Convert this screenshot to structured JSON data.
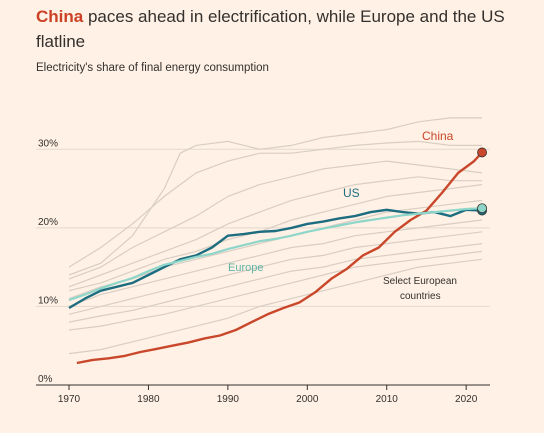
{
  "title": {
    "highlight": "China",
    "rest": " paces ahead in electrification, while Europe and the US flatline"
  },
  "subtitle": "Electricity's share of final energy consumption",
  "colors": {
    "china": "#c9472a",
    "us": "#1d6d80",
    "europe": "#8ed6c9",
    "countries": "#d9cec4",
    "grid": "#e3d9cf",
    "axis": "#33302e"
  },
  "chart_data": {
    "type": "line",
    "xlim": [
      1970,
      2023
    ],
    "ylim": [
      0,
      35
    ],
    "x_ticks": [
      1970,
      1980,
      1990,
      2000,
      2010,
      2020
    ],
    "x_tick_labels": [
      "1970",
      "1980",
      "1990",
      "2000",
      "2010",
      "2020"
    ],
    "y_ticks": [
      0,
      10,
      20,
      30
    ],
    "y_tick_labels": [
      "0%",
      "10%",
      "20%",
      "30%"
    ],
    "grid": true,
    "annotations": {
      "china": "China",
      "us": "US",
      "europe": "Europe",
      "countries_line1": "Select European",
      "countries_line2": "countries"
    },
    "series": [
      {
        "name": "China",
        "x": [
          1971,
          1973,
          1975,
          1977,
          1979,
          1981,
          1983,
          1985,
          1987,
          1989,
          1991,
          1993,
          1995,
          1997,
          1999,
          2001,
          2003,
          2005,
          2007,
          2009,
          2011,
          2013,
          2015,
          2017,
          2019,
          2021,
          2022
        ],
        "values": [
          2.8,
          3.2,
          3.4,
          3.7,
          4.2,
          4.6,
          5.0,
          5.4,
          5.9,
          6.3,
          7.0,
          8.0,
          9.0,
          9.8,
          10.5,
          11.8,
          13.5,
          14.8,
          16.5,
          17.5,
          19.5,
          21.0,
          22.2,
          24.5,
          27.0,
          28.5,
          29.6
        ]
      },
      {
        "name": "US",
        "x": [
          1970,
          1972,
          1974,
          1976,
          1978,
          1980,
          1982,
          1984,
          1986,
          1988,
          1990,
          1992,
          1994,
          1996,
          1998,
          2000,
          2002,
          2004,
          2006,
          2008,
          2010,
          2012,
          2014,
          2016,
          2018,
          2020,
          2022
        ],
        "values": [
          9.8,
          11.0,
          12.0,
          12.5,
          13.0,
          14.0,
          15.0,
          16.0,
          16.5,
          17.5,
          19.0,
          19.2,
          19.5,
          19.6,
          20.0,
          20.5,
          20.8,
          21.2,
          21.5,
          22.0,
          22.3,
          22.0,
          21.8,
          22.0,
          21.5,
          22.3,
          22.2
        ]
      },
      {
        "name": "Europe",
        "x": [
          1970,
          1972,
          1974,
          1976,
          1978,
          1980,
          1982,
          1984,
          1986,
          1988,
          1990,
          1992,
          1994,
          1996,
          1998,
          2000,
          2002,
          2004,
          2006,
          2008,
          2010,
          2012,
          2014,
          2016,
          2018,
          2020,
          2022
        ],
        "values": [
          10.8,
          11.5,
          12.3,
          13.0,
          13.6,
          14.5,
          15.3,
          15.8,
          16.3,
          16.7,
          17.3,
          17.8,
          18.3,
          18.6,
          19.0,
          19.5,
          19.9,
          20.3,
          20.7,
          21.0,
          21.3,
          21.6,
          21.8,
          22.0,
          22.2,
          22.4,
          22.5
        ]
      }
    ],
    "background_series": [
      {
        "x": [
          1970,
          1974,
          1978,
          1982,
          1984,
          1986,
          1990,
          1994,
          1998,
          2002,
          2006,
          2010,
          2014,
          2018,
          2022
        ],
        "values": [
          14.0,
          15.5,
          19.0,
          25.0,
          29.5,
          30.5,
          31.0,
          30.0,
          30.5,
          31.5,
          32.0,
          32.5,
          33.5,
          34.0,
          34.0
        ]
      },
      {
        "x": [
          1970,
          1974,
          1978,
          1982,
          1986,
          1990,
          1994,
          1998,
          2002,
          2006,
          2010,
          2014,
          2018,
          2022
        ],
        "values": [
          15.0,
          17.5,
          20.5,
          24.0,
          27.0,
          28.5,
          29.5,
          29.5,
          30.0,
          30.5,
          30.8,
          31.0,
          30.5,
          30.5
        ]
      },
      {
        "x": [
          1970,
          1974,
          1978,
          1982,
          1986,
          1990,
          1994,
          1998,
          2002,
          2006,
          2010,
          2014,
          2018,
          2022
        ],
        "values": [
          13.5,
          15.0,
          17.5,
          19.5,
          21.5,
          24.0,
          25.5,
          26.5,
          27.5,
          28.0,
          28.5,
          28.0,
          27.5,
          27.0
        ]
      },
      {
        "x": [
          1970,
          1974,
          1978,
          1982,
          1986,
          1990,
          1994,
          1998,
          2002,
          2006,
          2010,
          2014,
          2018,
          2022
        ],
        "values": [
          12.5,
          14.0,
          15.5,
          17.0,
          18.5,
          20.5,
          22.0,
          23.5,
          24.5,
          25.5,
          26.0,
          26.5,
          26.0,
          26.0
        ]
      },
      {
        "x": [
          1970,
          1974,
          1978,
          1982,
          1986,
          1990,
          1994,
          1998,
          2002,
          2006,
          2010,
          2014,
          2018,
          2022
        ],
        "values": [
          12.0,
          13.0,
          14.5,
          16.0,
          17.0,
          18.5,
          19.5,
          21.0,
          22.0,
          23.0,
          24.0,
          24.5,
          25.0,
          25.5
        ]
      },
      {
        "x": [
          1970,
          1974,
          1978,
          1982,
          1986,
          1990,
          1994,
          1998,
          2002,
          2006,
          2010,
          2014,
          2018,
          2022
        ],
        "values": [
          11.0,
          12.5,
          13.5,
          15.0,
          16.0,
          17.0,
          18.0,
          19.0,
          20.0,
          21.0,
          22.0,
          22.5,
          23.0,
          23.5
        ]
      },
      {
        "x": [
          1970,
          1974,
          1978,
          1982,
          1986,
          1990,
          1994,
          1998,
          2002,
          2006,
          2010,
          2014,
          2018,
          2022
        ],
        "values": [
          10.0,
          11.5,
          12.5,
          13.5,
          14.5,
          15.5,
          16.5,
          17.5,
          18.0,
          19.0,
          19.5,
          20.0,
          20.5,
          21.0
        ]
      },
      {
        "x": [
          1970,
          1974,
          1978,
          1982,
          1986,
          1990,
          1994,
          1998,
          2002,
          2006,
          2010,
          2014,
          2018,
          2022
        ],
        "values": [
          9.0,
          10.0,
          11.0,
          12.0,
          13.0,
          14.0,
          15.0,
          16.0,
          16.5,
          17.5,
          18.0,
          18.5,
          19.0,
          19.5
        ]
      },
      {
        "x": [
          1970,
          1974,
          1978,
          1982,
          1986,
          1990,
          1994,
          1998,
          2002,
          2006,
          2010,
          2014,
          2018,
          2022
        ],
        "values": [
          8.0,
          8.8,
          9.5,
          10.5,
          11.5,
          12.5,
          13.5,
          14.5,
          15.0,
          16.0,
          16.5,
          17.0,
          17.5,
          18.0
        ]
      },
      {
        "x": [
          1970,
          1974,
          1978,
          1982,
          1986,
          1990,
          1994,
          1998,
          2002,
          2006,
          2010,
          2014,
          2018,
          2022
        ],
        "values": [
          7.0,
          7.5,
          8.3,
          9.0,
          10.0,
          11.0,
          12.0,
          13.0,
          14.0,
          15.0,
          15.5,
          16.0,
          16.5,
          17.0
        ]
      },
      {
        "x": [
          1970,
          1974,
          1978,
          1982,
          1986,
          1990,
          1994,
          1998,
          2002,
          2006,
          2010,
          2014,
          2018,
          2022
        ],
        "values": [
          4.0,
          4.5,
          5.5,
          6.5,
          7.5,
          8.5,
          10.0,
          11.0,
          12.0,
          13.0,
          14.0,
          15.0,
          15.5,
          16.0
        ]
      }
    ]
  }
}
